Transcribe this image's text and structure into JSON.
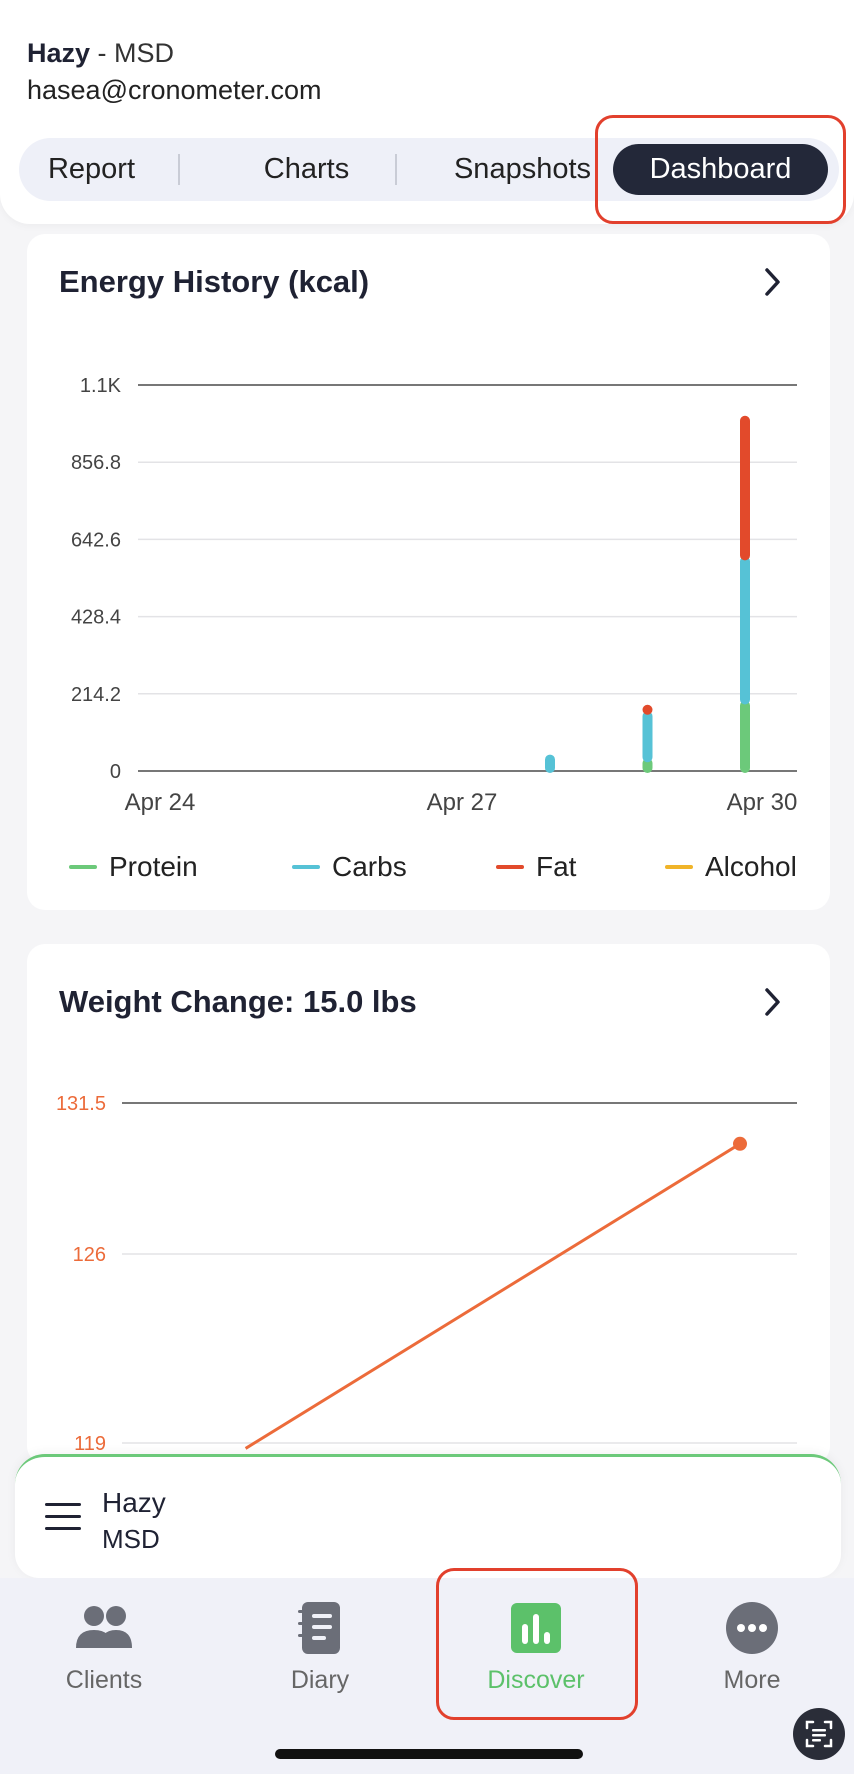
{
  "header": {
    "client_name": "Hazy",
    "separator": " - ",
    "credential": "MSD",
    "email": "hasea@cronometer.com"
  },
  "tabs": [
    {
      "label": "Report"
    },
    {
      "label": "Charts"
    },
    {
      "label": "Snapshots"
    },
    {
      "label": "Dashboard",
      "active": true
    }
  ],
  "energy_card": {
    "title": "Energy History (kcal)"
  },
  "weight_card": {
    "title": "Weight Change: 15.0 lbs"
  },
  "chart_data": [
    {
      "type": "bar",
      "title": "Energy History (kcal)",
      "x_tick_labels": [
        "Apr 24",
        "Apr 27",
        "Apr 30"
      ],
      "y_tick_labels": [
        "0",
        "214.2",
        "428.4",
        "642.6",
        "856.8",
        "1.1K"
      ],
      "ylim": [
        0,
        1071
      ],
      "stacked": true,
      "categories": [
        "Apr 24",
        "Apr 25",
        "Apr 26",
        "Apr 27",
        "Apr 28",
        "Apr 29",
        "Apr 30"
      ],
      "series": [
        {
          "name": "Protein",
          "color": "#6cc97a",
          "values": [
            0,
            0,
            0,
            0,
            0,
            30,
            190
          ]
        },
        {
          "name": "Carbs",
          "color": "#56c2d6",
          "values": [
            0,
            0,
            0,
            0,
            40,
            130,
            400
          ]
        },
        {
          "name": "Fat",
          "color": "#e24a2b",
          "values": [
            0,
            0,
            0,
            0,
            0,
            20,
            390
          ]
        },
        {
          "name": "Alcohol",
          "color": "#f0b429",
          "values": [
            0,
            0,
            0,
            0,
            0,
            0,
            0
          ]
        }
      ],
      "grid": true,
      "legend": "bottom"
    },
    {
      "type": "line",
      "title": "Weight Change: 15.0 lbs",
      "y_tick_labels": [
        "131.5",
        "126",
        "119"
      ],
      "ylim": [
        119,
        131.5
      ],
      "series": [
        {
          "color": "#ec6b3a",
          "x": [
            0.2,
            1.0
          ],
          "y": [
            118.8,
            130
          ]
        }
      ],
      "grid": true
    }
  ],
  "bottom_panel": {
    "name": "Hazy",
    "credential": "MSD"
  },
  "nav": [
    {
      "label": "Clients",
      "icon": "clients-icon"
    },
    {
      "label": "Diary",
      "icon": "diary-icon"
    },
    {
      "label": "Discover",
      "icon": "discover-icon",
      "active": true
    },
    {
      "label": "More",
      "icon": "more-icon"
    }
  ]
}
